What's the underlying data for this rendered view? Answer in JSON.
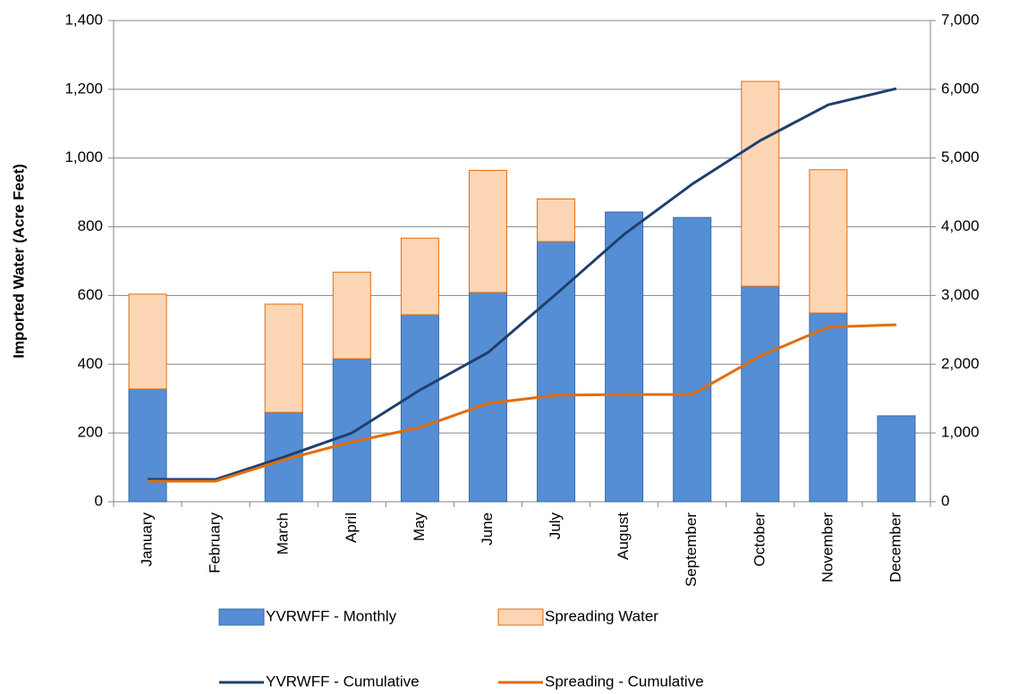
{
  "chart_data": {
    "type": "bar",
    "categories": [
      "January",
      "February",
      "March",
      "April",
      "May",
      "June",
      "July",
      "August",
      "September",
      "October",
      "November",
      "December"
    ],
    "ylabel": "Imported Water (Acre Feet)",
    "ylim": [
      0,
      1400
    ],
    "yticks": [
      0,
      200,
      400,
      600,
      800,
      {
        "value": 1000,
        "label": "1,000"
      },
      {
        "value": 1200,
        "label": "1,200"
      },
      {
        "value": 1400,
        "label": "1,400"
      }
    ],
    "y2lim": [
      0,
      7000
    ],
    "y2ticks": [
      0,
      {
        "value": 1000,
        "label": "1,000"
      },
      {
        "value": 2000,
        "label": "2,000"
      },
      {
        "value": 3000,
        "label": "3,000"
      },
      {
        "value": 4000,
        "label": "4,000"
      },
      {
        "value": 5000,
        "label": "5,000"
      },
      {
        "value": 6000,
        "label": "6,000"
      },
      {
        "value": 7000,
        "label": "7,000"
      }
    ],
    "grid": true,
    "stacked": true,
    "series": [
      {
        "name": "YVRWFF - Monthly",
        "kind": "bar",
        "color": "#558ed5",
        "values": [
          328,
          0,
          260,
          416,
          544,
          609,
          757,
          843,
          827,
          627,
          549,
          250
        ]
      },
      {
        "name": "Spreading Water",
        "kind": "bar",
        "color": "#fcd5b5",
        "values": [
          276,
          0,
          315,
          252,
          223,
          355,
          124,
          0,
          0,
          596,
          417,
          0
        ]
      },
      {
        "name": "YVRWFF - Cumulative",
        "kind": "line",
        "axis": "y2",
        "color": "#1f3f6e",
        "values": [
          325,
          325,
          650,
          1000,
          1625,
          2170,
          3020,
          3890,
          4620,
          5255,
          5775,
          6010
        ]
      },
      {
        "name": "Spreading - Cumulative",
        "kind": "line",
        "axis": "y2",
        "color": "#e46c0a",
        "values": [
          300,
          300,
          610,
          870,
          1080,
          1430,
          1550,
          1560,
          1560,
          2120,
          2540,
          2575
        ]
      }
    ]
  }
}
